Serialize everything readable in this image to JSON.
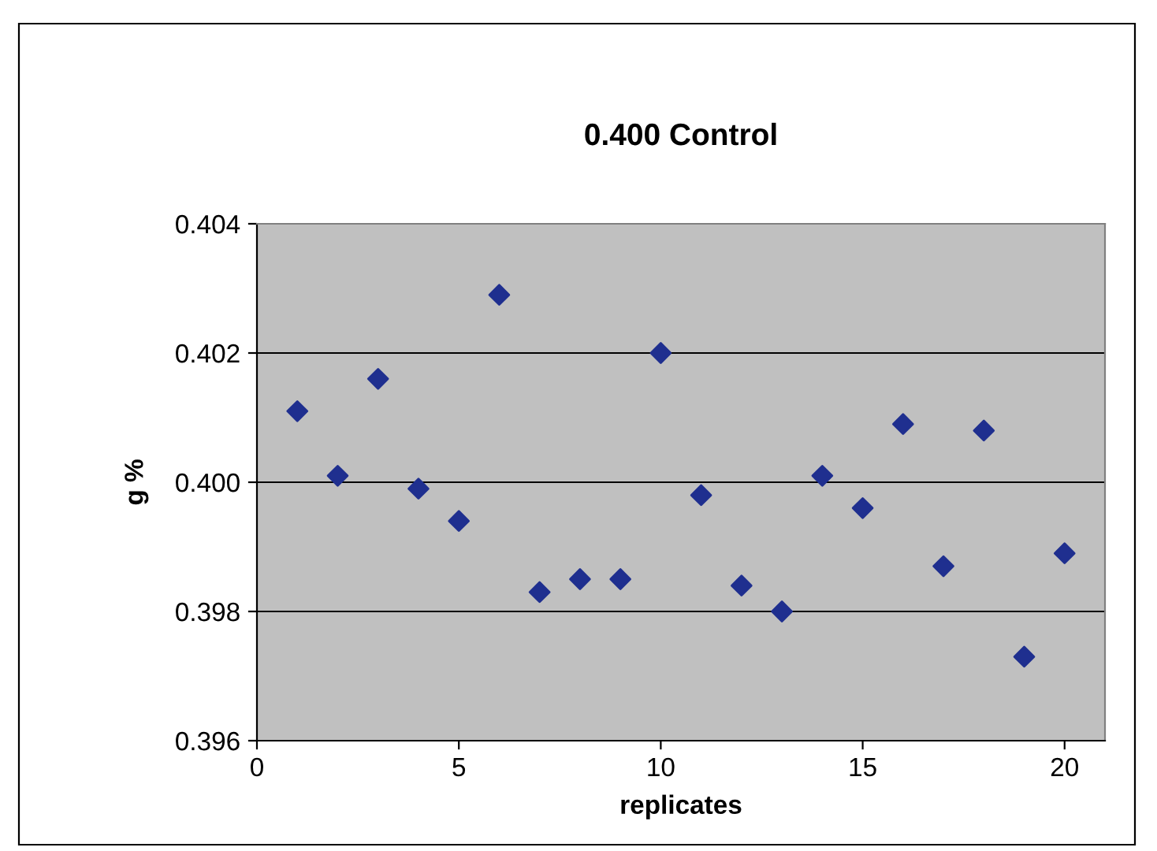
{
  "chart_data": {
    "type": "scatter",
    "title": "0.400 Control",
    "xlabel": "replicates",
    "ylabel": "g %",
    "x": [
      1,
      2,
      3,
      4,
      5,
      6,
      7,
      8,
      9,
      10,
      11,
      12,
      13,
      14,
      15,
      16,
      17,
      18,
      19,
      20
    ],
    "series": [
      {
        "color": "#1f2f8f",
        "values": [
          0.4011,
          0.4001,
          0.4016,
          0.3999,
          0.3994,
          0.4029,
          0.3983,
          0.3985,
          0.3985,
          0.402,
          0.3998,
          0.3984,
          0.398,
          0.4001,
          0.3996,
          0.4009,
          0.3987,
          0.4008,
          0.3973,
          0.3989
        ]
      }
    ],
    "xlim": [
      0,
      21
    ],
    "xticks": [
      0,
      5,
      10,
      15,
      20
    ],
    "ylim": [
      0.396,
      0.404
    ],
    "yticks": [
      {
        "value": 0.396,
        "label": "0.396"
      },
      {
        "value": 0.398,
        "label": "0.398"
      },
      {
        "value": 0.4,
        "label": "0.400"
      },
      {
        "value": 0.402,
        "label": "0.402"
      },
      {
        "value": 0.404,
        "label": "0.404"
      }
    ],
    "grid": "y",
    "marker": "diamond"
  }
}
